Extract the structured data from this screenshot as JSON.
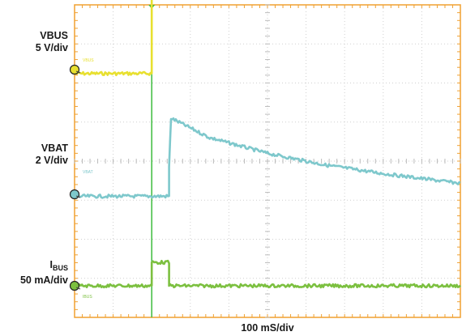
{
  "chart_data": {
    "type": "line",
    "title": "",
    "xlabel": "100 mS/div",
    "x_divisions": 10,
    "y_divisions": 8,
    "grid": true,
    "trigger_time_div": 2,
    "series": [
      {
        "name": "VBUS",
        "scale": "5 V/div",
        "color": "#e8e030",
        "tag": "VBUS",
        "points_div": [
          [
            0,
            -0.1
          ],
          [
            2,
            -0.1
          ],
          [
            2,
            7.75
          ],
          [
            10,
            7.75
          ]
        ]
      },
      {
        "name": "VBAT",
        "scale": "2 V/div",
        "color": "#7ec8cc",
        "tag": "VBAT",
        "points_div": [
          [
            0,
            -0.05
          ],
          [
            2.45,
            -0.05
          ],
          [
            2.45,
            0.7
          ],
          [
            2.5,
            1.95
          ],
          [
            3.5,
            1.45
          ],
          [
            5,
            1.05
          ],
          [
            6.5,
            0.75
          ],
          [
            8,
            0.53
          ],
          [
            10,
            0.28
          ]
        ]
      },
      {
        "name": "I_BUS",
        "scale": "50 mA/div",
        "color": "#7cc040",
        "tag": "IBUS",
        "points_div": [
          [
            0,
            0.0
          ],
          [
            2,
            0.0
          ],
          [
            2,
            0.6
          ],
          [
            2.45,
            0.6
          ],
          [
            2.45,
            0.0
          ],
          [
            10,
            0.0
          ]
        ]
      }
    ]
  },
  "labels": {
    "vbus_name": "VBUS",
    "vbus_scale": "5 V/div",
    "vbat_name": "VBAT",
    "vbat_scale": "2 V/div",
    "ibus_main": "I",
    "ibus_sub": "BUS",
    "ibus_scale": "50 mA/div"
  },
  "colors": {
    "grid_frame": "#f0a030",
    "grid_lines": "#cfcfcf",
    "trigger": "#3cbb3c"
  }
}
